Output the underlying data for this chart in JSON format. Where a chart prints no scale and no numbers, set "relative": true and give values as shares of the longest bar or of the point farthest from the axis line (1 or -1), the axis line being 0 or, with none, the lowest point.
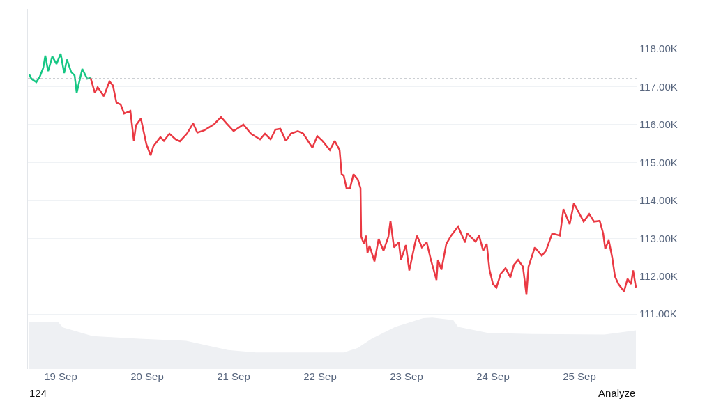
{
  "chart_data": [
    {
      "type": "line",
      "xlim": [
        "--09-18T14:54",
        "--09-25T15:52"
      ],
      "ylim": [
        109550,
        119050
      ],
      "yticks": [
        {
          "value": 111000,
          "label": "111.00K"
        },
        {
          "value": 112000,
          "label": "112.00K"
        },
        {
          "value": 113000,
          "label": "113.00K"
        },
        {
          "value": 114000,
          "label": "114.00K"
        },
        {
          "value": 115000,
          "label": "115.00K"
        },
        {
          "value": 116000,
          "label": "116.00K"
        },
        {
          "value": 117000,
          "label": "117.00K"
        },
        {
          "value": 118000,
          "label": "118.00K"
        }
      ],
      "grid": "y",
      "tick_labels": "y",
      "ref_lines": [
        {
          "axis": "y",
          "value": 117210,
          "line_style": "dotted",
          "color": "#9aa0a8"
        }
      ],
      "series": [
        {
          "color": "#16c784",
          "x": [
            "--09-18T15:17",
            "--09-18T15:52",
            "--09-18T17:14",
            "--09-18T18:11",
            "--09-18T19:10",
            "--09-18T19:44",
            "--09-18T20:31",
            "--09-18T21:41",
            "--09-18T22:50",
            "--09-19T00:00",
            "--09-19T00:58",
            "--09-19T01:44",
            "--09-19T02:54",
            "--09-19T03:52",
            "--09-19T04:27",
            "--09-19T06:00",
            "--09-19T07:21",
            "--09-19T08:19"
          ],
          "values": [
            117320,
            117210,
            117120,
            117260,
            117500,
            117820,
            117410,
            117800,
            117600,
            117870,
            117360,
            117720,
            117390,
            117300,
            116840,
            117470,
            117210,
            117230
          ]
        },
        {
          "color": "#ea3943",
          "x": [
            "--09-19T08:19",
            "--09-19T09:29",
            "--09-19T10:16",
            "--09-19T12:00",
            "--09-19T13:33",
            "--09-19T14:31",
            "--09-19T15:29",
            "--09-19T16:39",
            "--09-19T17:37",
            "--09-19T19:21",
            "--09-19T20:19",
            "--09-19T20:54",
            "--09-19T22:16",
            "--09-19T23:48",
            "--09-20T00:58",
            "--09-20T01:44",
            "--09-20T03:41",
            "--09-20T04:39",
            "--09-20T06:11",
            "--09-20T07:56",
            "--09-20T09:06",
            "--09-20T11:02",
            "--09-20T12:46",
            "--09-20T13:56",
            "--09-20T15:52",
            "--09-20T18:35",
            "--09-20T20:31",
            "--09-20T22:04",
            "--09-21T00:00",
            "--09-21T02:43",
            "--09-21T04:50",
            "--09-21T07:21",
            "--09-21T08:43",
            "--09-21T10:16",
            "--09-21T11:37",
            "--09-21T12:58",
            "--09-21T14:31",
            "--09-21T15:52",
            "--09-21T17:49",
            "--09-21T19:21",
            "--09-21T21:52",
            "--09-21T23:14",
            "--09-22T00:46",
            "--09-22T02:43",
            "--09-22T04:04",
            "--09-22T05:25",
            "--09-22T06:00",
            "--09-22T06:35",
            "--09-22T07:21",
            "--09-22T08:19",
            "--09-22T09:17",
            "--09-22T10:27",
            "--09-22T11:14",
            "--09-22T11:25",
            "--09-22T12:11",
            "--09-22T12:46",
            "--09-22T13:10",
            "--09-22T13:44",
            "--09-22T15:06",
            "--09-22T16:16",
            "--09-22T17:37",
            "--09-22T18:58",
            "--09-22T19:33",
            "--09-22T20:31",
            "--09-22T21:52",
            "--09-22T22:27",
            "--09-22T23:49",
            "--09-23T00:46",
            "--09-23T02:19",
            "--09-23T02:54",
            "--09-23T04:16",
            "--09-23T05:37",
            "--09-23T06:46",
            "--09-23T08:19",
            "--09-23T08:43",
            "--09-23T09:41",
            "--09-23T11:02",
            "--09-23T12:23",
            "--09-23T14:19",
            "--09-23T16:16",
            "--09-23T16:50",
            "--09-23T19:10",
            "--09-23T20:08",
            "--09-23T21:17",
            "--09-23T22:16",
            "--09-23T23:02",
            "--09-24T00:00",
            "--09-24T00:58",
            "--09-24T02:08",
            "--09-24T03:29",
            "--09-24T04:50",
            "--09-24T05:49",
            "--09-24T06:58",
            "--09-24T08:19",
            "--09-24T09:17",
            "--09-24T09:52",
            "--09-24T11:37",
            "--09-24T13:33",
            "--09-24T14:43",
            "--09-24T16:27",
            "--09-24T18:35",
            "--09-24T19:33",
            "--09-24T21:17",
            "--09-24T22:27",
            "--09-24T23:49",
            "--09-25T01:10",
            "--09-25T02:43",
            "--09-25T04:04",
            "--09-25T05:37",
            "--09-25T06:35",
            "--09-25T07:10",
            "--09-25T08:08",
            "--09-25T09:06",
            "--09-25T09:52",
            "--09-25T10:50",
            "--09-25T12:23",
            "--09-25T13:21",
            "--09-25T14:19",
            "--09-25T14:54",
            "--09-25T15:41"
          ],
          "values": [
            117230,
            116840,
            116990,
            116750,
            117140,
            117030,
            116580,
            116530,
            116290,
            116360,
            115570,
            115980,
            116160,
            115480,
            115190,
            115430,
            115670,
            115570,
            115760,
            115610,
            115560,
            115760,
            116030,
            115790,
            115850,
            116010,
            116200,
            116030,
            115830,
            116000,
            115760,
            115610,
            115760,
            115610,
            115870,
            115890,
            115570,
            115760,
            115830,
            115760,
            115390,
            115700,
            115560,
            115330,
            115570,
            115330,
            114690,
            114650,
            114320,
            114320,
            114690,
            114560,
            114320,
            113040,
            112850,
            113070,
            112610,
            112800,
            112390,
            112980,
            112670,
            113040,
            113460,
            112760,
            112890,
            112430,
            112820,
            112150,
            112850,
            113070,
            112760,
            112890,
            112430,
            111900,
            112430,
            112170,
            112850,
            113070,
            113310,
            112890,
            113130,
            112910,
            113070,
            112670,
            112850,
            112170,
            111790,
            111700,
            112060,
            112210,
            111970,
            112300,
            112430,
            112250,
            111510,
            112250,
            112760,
            112540,
            112670,
            113130,
            113070,
            113770,
            113370,
            113920,
            113680,
            113440,
            113640,
            113440,
            113460,
            113130,
            112720,
            112950,
            112490,
            111990,
            111790,
            111600,
            111930,
            111790,
            112150,
            111700
          ]
        }
      ]
    },
    {
      "type": "area",
      "relative": true,
      "tick_labels": "x",
      "grid": false,
      "xlim": [
        "--09-18T14:54",
        "--09-25T15:52"
      ],
      "xticks": [
        {
          "value": "--09-19",
          "label": "19 Sep"
        },
        {
          "value": "--09-20",
          "label": "20 Sep"
        },
        {
          "value": "--09-21",
          "label": "21 Sep"
        },
        {
          "value": "--09-22",
          "label": "22 Sep"
        },
        {
          "value": "--09-23",
          "label": "23 Sep"
        },
        {
          "value": "--09-24",
          "label": "24 Sep"
        },
        {
          "value": "--09-25",
          "label": "25 Sep"
        }
      ],
      "annotations": [
        "124",
        "Analyze"
      ],
      "series": [
        {
          "color": "#eef0f3",
          "x": [
            "--09-18T15:06",
            "--09-18T23:14",
            "--09-19T00:35",
            "--09-19T08:54",
            "--09-19T21:52",
            "--09-20T10:50",
            "--09-20T22:27",
            "--09-21T06:11",
            "--09-22T06:35",
            "--09-22T10:27",
            "--09-22T14:19",
            "--09-22T20:54",
            "--09-23T04:39",
            "--09-23T07:10",
            "--09-23T12:58",
            "--09-23T14:19",
            "--09-23T22:39",
            "--09-24T11:37",
            "--09-25T06:58",
            "--09-25T15:41"
          ],
          "values": [
            0.92,
            0.92,
            0.81,
            0.64,
            0.59,
            0.55,
            0.37,
            0.32,
            0.32,
            0.41,
            0.59,
            0.82,
            0.99,
            1,
            0.95,
            0.82,
            0.7,
            0.68,
            0.67,
            0.75
          ]
        }
      ]
    }
  ]
}
